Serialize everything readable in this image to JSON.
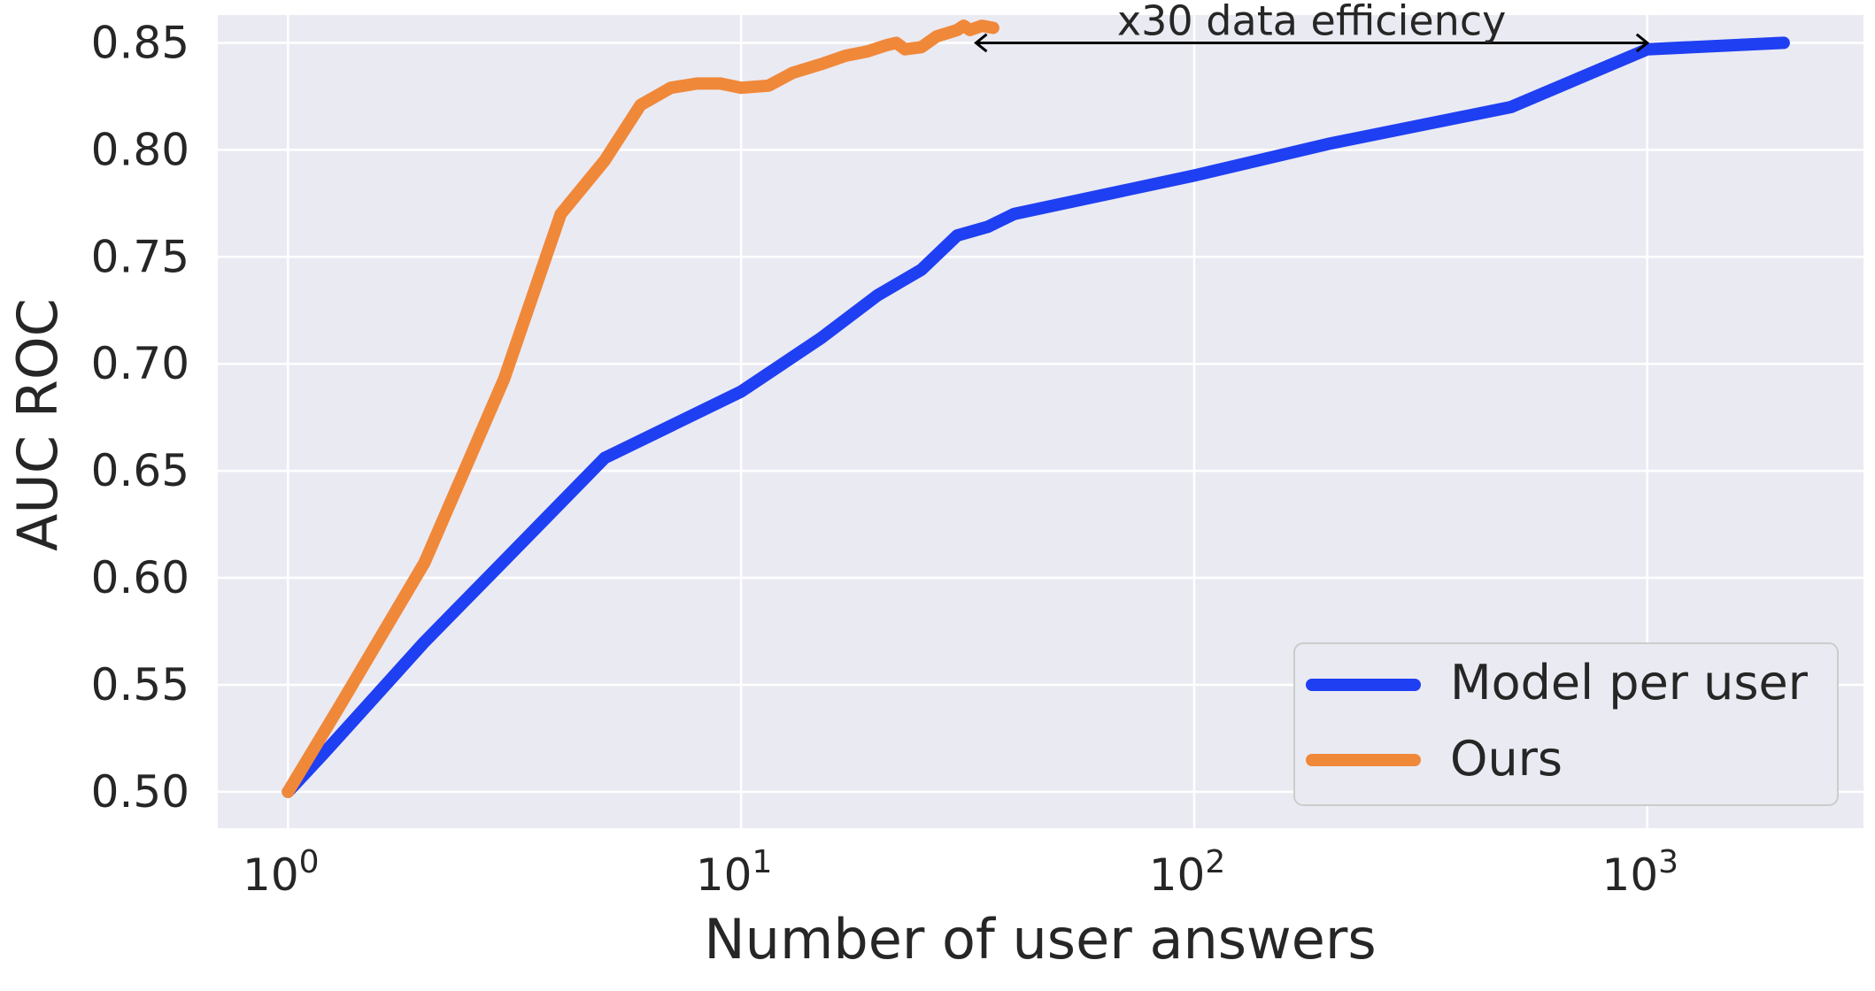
{
  "chart_data": {
    "type": "line",
    "title": "",
    "xlabel": "Number of user answers",
    "ylabel": "AUC ROC",
    "xscale": "log",
    "xlim": [
      0.7,
      3000
    ],
    "ylim": [
      0.483,
      0.863
    ],
    "x_ticks": [
      1,
      10,
      100,
      1000
    ],
    "x_tick_labels": [
      {
        "base": "10",
        "exp": "0"
      },
      {
        "base": "10",
        "exp": "1"
      },
      {
        "base": "10",
        "exp": "2"
      },
      {
        "base": "10",
        "exp": "3"
      }
    ],
    "y_ticks": [
      0.5,
      0.55,
      0.6,
      0.65,
      0.7,
      0.75,
      0.8,
      0.85
    ],
    "y_tick_labels": [
      "0.50",
      "0.55",
      "0.60",
      "0.65",
      "0.70",
      "0.75",
      "0.80",
      "0.85"
    ],
    "grid": true,
    "legend_position": "lower-right",
    "series": [
      {
        "name": "Model per user",
        "color": "#1f3ff2",
        "points": [
          [
            1,
            0.5
          ],
          [
            1.2,
            0.518
          ],
          [
            2,
            0.57
          ],
          [
            3,
            0.608
          ],
          [
            5,
            0.656
          ],
          [
            10,
            0.687
          ],
          [
            15,
            0.712
          ],
          [
            20,
            0.732
          ],
          [
            25,
            0.744
          ],
          [
            30,
            0.76
          ],
          [
            35,
            0.764
          ],
          [
            40,
            0.77
          ],
          [
            100,
            0.788
          ],
          [
            200,
            0.803
          ],
          [
            500,
            0.82
          ],
          [
            1000,
            0.847
          ],
          [
            2000,
            0.85
          ]
        ]
      },
      {
        "name": "Ours",
        "color": "#f0883a",
        "points": [
          [
            1,
            0.5
          ],
          [
            1.3,
            0.54
          ],
          [
            2,
            0.607
          ],
          [
            3,
            0.693
          ],
          [
            4,
            0.77
          ],
          [
            5,
            0.795
          ],
          [
            6,
            0.821
          ],
          [
            7,
            0.829
          ],
          [
            8,
            0.831
          ],
          [
            9,
            0.831
          ],
          [
            10,
            0.829
          ],
          [
            11.5,
            0.83
          ],
          [
            13,
            0.836
          ],
          [
            15,
            0.84
          ],
          [
            17,
            0.844
          ],
          [
            19,
            0.846
          ],
          [
            21,
            0.849
          ],
          [
            22,
            0.85
          ],
          [
            23,
            0.847
          ],
          [
            25,
            0.848
          ],
          [
            27,
            0.853
          ],
          [
            30,
            0.856
          ],
          [
            31,
            0.858
          ],
          [
            32,
            0.856
          ],
          [
            34,
            0.858
          ],
          [
            36,
            0.857
          ]
        ]
      }
    ],
    "annotations": [
      {
        "text": "x30 data efficiency",
        "x_from": 33,
        "x_to": 1000,
        "y": 0.85,
        "arrowstyle": "both"
      }
    ]
  }
}
